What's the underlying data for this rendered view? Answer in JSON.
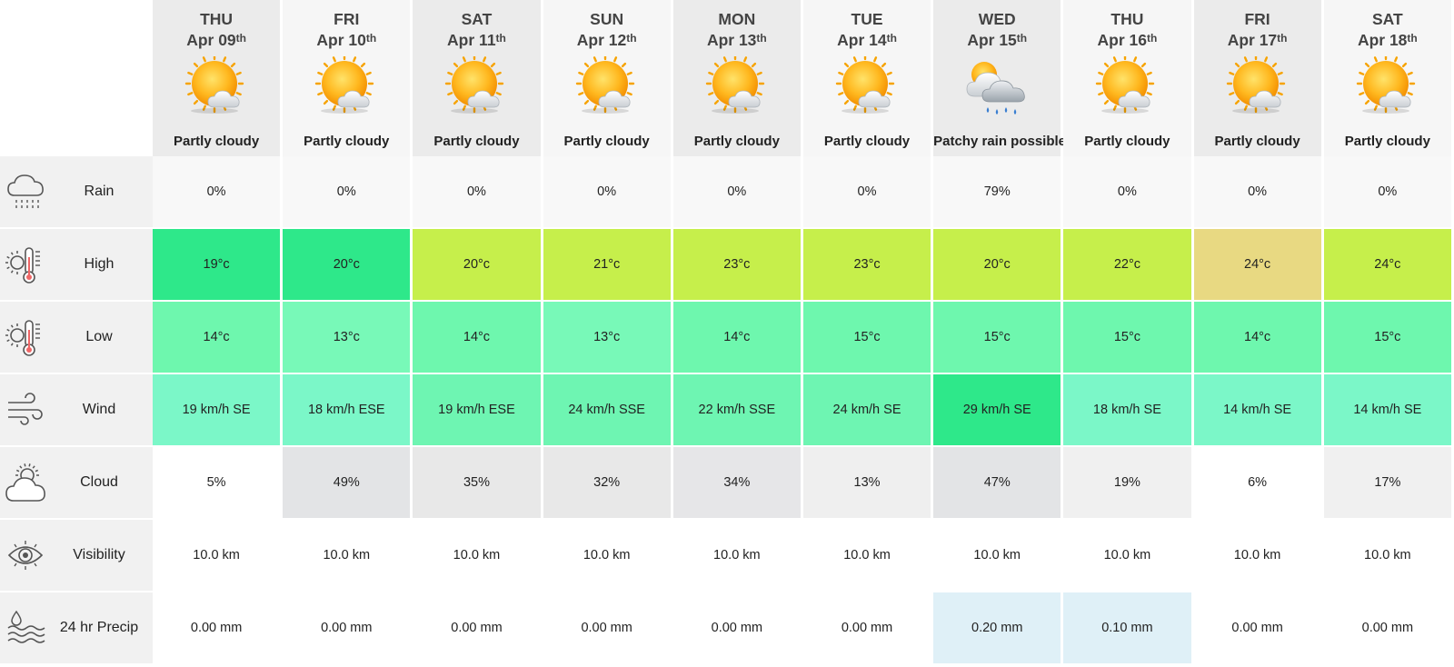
{
  "days": [
    {
      "dow": "THU",
      "date": "Apr 09",
      "suffix": "th",
      "condition": "Partly cloudy",
      "icon": "partly-cloudy-icon"
    },
    {
      "dow": "FRI",
      "date": "Apr 10",
      "suffix": "th",
      "condition": "Partly cloudy",
      "icon": "partly-cloudy-icon"
    },
    {
      "dow": "SAT",
      "date": "Apr 11",
      "suffix": "th",
      "condition": "Partly cloudy",
      "icon": "partly-cloudy-icon"
    },
    {
      "dow": "SUN",
      "date": "Apr 12",
      "suffix": "th",
      "condition": "Partly cloudy",
      "icon": "partly-cloudy-icon"
    },
    {
      "dow": "MON",
      "date": "Apr 13",
      "suffix": "th",
      "condition": "Partly cloudy",
      "icon": "partly-cloudy-icon"
    },
    {
      "dow": "TUE",
      "date": "Apr 14",
      "suffix": "th",
      "condition": "Partly cloudy",
      "icon": "partly-cloudy-icon"
    },
    {
      "dow": "WED",
      "date": "Apr 15",
      "suffix": "th",
      "condition": "Patchy rain possible",
      "icon": "patchy-rain-icon"
    },
    {
      "dow": "THU",
      "date": "Apr 16",
      "suffix": "th",
      "condition": "Partly cloudy",
      "icon": "partly-cloudy-icon"
    },
    {
      "dow": "FRI",
      "date": "Apr 17",
      "suffix": "th",
      "condition": "Partly cloudy",
      "icon": "partly-cloudy-icon"
    },
    {
      "dow": "SAT",
      "date": "Apr 18",
      "suffix": "th",
      "condition": "Partly cloudy",
      "icon": "partly-cloudy-icon"
    }
  ],
  "rows": [
    {
      "key": "rain",
      "label": "Rain",
      "icon": "rain-cloud-icon",
      "values": [
        "0%",
        "0%",
        "0%",
        "0%",
        "0%",
        "0%",
        "79%",
        "0%",
        "0%",
        "0%"
      ],
      "colors": [
        "#f8f8f8",
        "#f8f8f8",
        "#f8f8f8",
        "#f8f8f8",
        "#f8f8f8",
        "#f8f8f8",
        "#f8f8f8",
        "#f8f8f8",
        "#f8f8f8",
        "#f8f8f8"
      ]
    },
    {
      "key": "high",
      "label": "High",
      "icon": "thermometer-sun-icon",
      "values": [
        "19°c",
        "20°c",
        "20°c",
        "21°c",
        "23°c",
        "23°c",
        "20°c",
        "22°c",
        "24°c",
        "24°c"
      ],
      "colors": [
        "#2ee88a",
        "#2ee88a",
        "#c6ef4b",
        "#c6ef4b",
        "#c6ef4b",
        "#c6ef4b",
        "#c6ef4b",
        "#c6ef4b",
        "#e8d982",
        "#c6ef4b"
      ]
    },
    {
      "key": "low",
      "label": "Low",
      "icon": "thermometer-sun-icon",
      "values": [
        "14°c",
        "13°c",
        "14°c",
        "13°c",
        "14°c",
        "15°c",
        "15°c",
        "15°c",
        "14°c",
        "15°c"
      ],
      "colors": [
        "#6ef7ae",
        "#78f9b8",
        "#6ef7ae",
        "#78f9b8",
        "#6ef7ae",
        "#6ef7ae",
        "#6ef7ae",
        "#6ef7ae",
        "#6ef7ae",
        "#6ef7ae"
      ]
    },
    {
      "key": "wind",
      "label": "Wind",
      "icon": "wind-icon",
      "values": [
        "19 km/h SE",
        "18 km/h ESE",
        "19 km/h ESE",
        "24 km/h SSE",
        "22 km/h SSE",
        "24 km/h SE",
        "29 km/h SE",
        "18 km/h SE",
        "14 km/h SE",
        "14 km/h SE"
      ],
      "colors": [
        "#7bf7c8",
        "#7bf7c8",
        "#6ef5b2",
        "#6ef5b2",
        "#6ef5b2",
        "#6ef5b2",
        "#2ee88a",
        "#7bf7c8",
        "#7bf7c8",
        "#7bf7c8"
      ]
    },
    {
      "key": "cloud",
      "label": "Cloud",
      "icon": "sun-cloud-icon",
      "values": [
        "5%",
        "49%",
        "35%",
        "32%",
        "34%",
        "13%",
        "47%",
        "19%",
        "6%",
        "17%"
      ],
      "colors": [
        "#ffffff",
        "#e3e4e6",
        "#e8e8e8",
        "#e8e8e8",
        "#e6e6e8",
        "#efefef",
        "#e3e4e6",
        "#f0f0f0",
        "#ffffff",
        "#f0f0f0"
      ]
    },
    {
      "key": "visibility",
      "label": "Visibility",
      "icon": "eye-icon",
      "values": [
        "10.0 km",
        "10.0 km",
        "10.0 km",
        "10.0 km",
        "10.0 km",
        "10.0 km",
        "10.0 km",
        "10.0 km",
        "10.0 km",
        "10.0 km"
      ],
      "colors": [
        "#ffffff",
        "#ffffff",
        "#ffffff",
        "#ffffff",
        "#ffffff",
        "#ffffff",
        "#ffffff",
        "#ffffff",
        "#ffffff",
        "#ffffff"
      ]
    },
    {
      "key": "precip",
      "label": "24 hr Precip",
      "icon": "precip-icon",
      "values": [
        "0.00 mm",
        "0.00 mm",
        "0.00 mm",
        "0.00 mm",
        "0.00 mm",
        "0.00 mm",
        "0.20 mm",
        "0.10 mm",
        "0.00 mm",
        "0.00 mm"
      ],
      "colors": [
        "#ffffff",
        "#ffffff",
        "#ffffff",
        "#ffffff",
        "#ffffff",
        "#ffffff",
        "#dff0f7",
        "#dff0f7",
        "#ffffff",
        "#ffffff"
      ]
    }
  ]
}
